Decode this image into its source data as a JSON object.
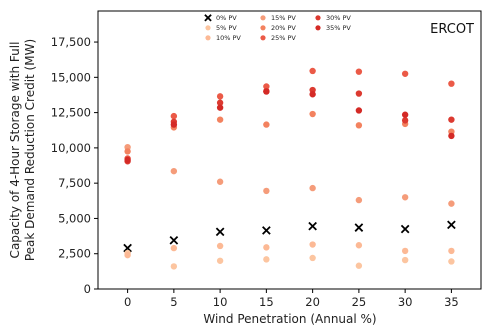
{
  "chart_data": {
    "type": "scatter",
    "annotation": "ERCOT",
    "xlabel": "Wind Penetration (Annual %)",
    "ylabel_lines": [
      "Capacity of 4-Hour Storage with Full",
      "Peak Demand Reduction Credit (MW)"
    ],
    "xlim": [
      -3.2,
      38.2
    ],
    "ylim": [
      0,
      19700
    ],
    "xticks": [
      0,
      5,
      10,
      15,
      20,
      25,
      30,
      35
    ],
    "xtick_labels": [
      "0",
      "5",
      "10",
      "15",
      "20",
      "25",
      "30",
      "35"
    ],
    "yticks": [
      0,
      2500,
      5000,
      7500,
      10000,
      12500,
      15000,
      17500
    ],
    "ytick_labels": [
      "0",
      "2,500",
      "5,000",
      "7,500",
      "10,000",
      "12,500",
      "15,000",
      "17,500"
    ],
    "grid": false,
    "legend_position": "top-center",
    "x": [
      0,
      5,
      10,
      15,
      20,
      25,
      30,
      35
    ],
    "series": [
      {
        "name": "0% PV",
        "color": "#000000",
        "marker": "x",
        "values": [
          2900,
          3450,
          4050,
          4150,
          4450,
          4350,
          4250,
          4550
        ]
      },
      {
        "name": "5% PV",
        "color": "#fcc5a0",
        "marker": "o",
        "values": [
          2550,
          1600,
          2000,
          2100,
          2200,
          1650,
          2050,
          1950
        ]
      },
      {
        "name": "10% PV",
        "color": "#fcb995",
        "marker": "o",
        "values": [
          2400,
          2900,
          3050,
          2950,
          3150,
          3100,
          2700,
          2700
        ]
      },
      {
        "name": "15% PV",
        "color": "#f59c7a",
        "marker": "o",
        "values": [
          10050,
          8350,
          7600,
          6950,
          7150,
          6300,
          6500,
          6050
        ]
      },
      {
        "name": "20% PV",
        "color": "#f3825f",
        "marker": "o",
        "values": [
          9750,
          11450,
          12000,
          11650,
          12400,
          11600,
          11700,
          11150
        ]
      },
      {
        "name": "25% PV",
        "color": "#eb5a47",
        "marker": "o",
        "values": [
          9250,
          12250,
          13650,
          14350,
          15450,
          15400,
          15250,
          14550
        ]
      },
      {
        "name": "30% PV",
        "color": "#dc3a30",
        "marker": "o",
        "values": [
          9050,
          11850,
          13200,
          14000,
          14100,
          13850,
          11950,
          12000
        ]
      },
      {
        "name": "35% PV",
        "color": "#d42a26",
        "marker": "o",
        "values": [
          9150,
          11650,
          12850,
          14000,
          13800,
          12650,
          12350,
          10850
        ]
      }
    ]
  }
}
